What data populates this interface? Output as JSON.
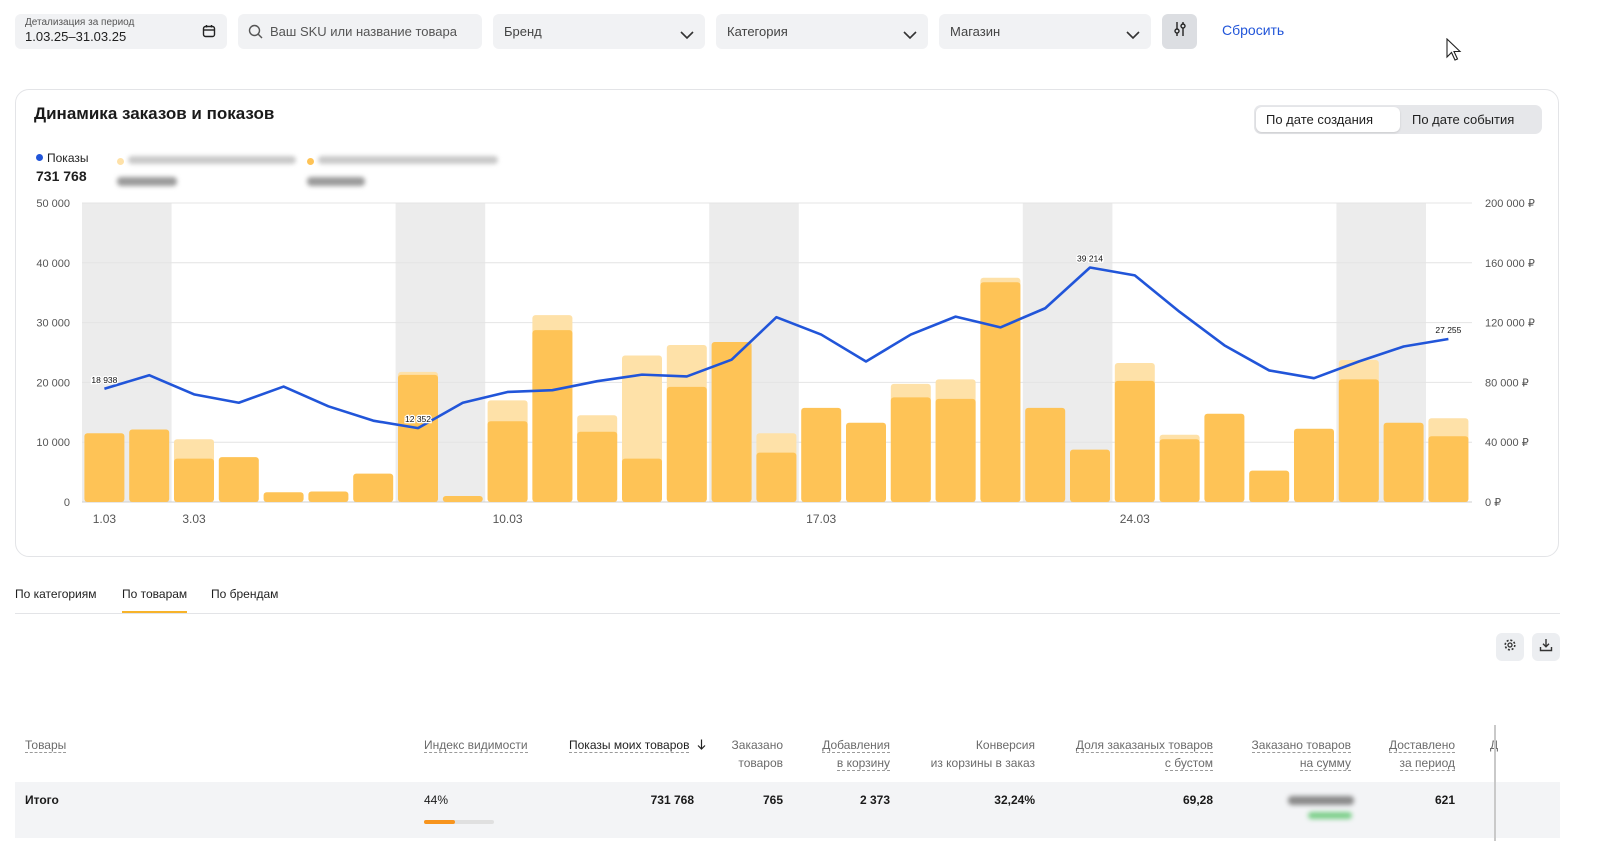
{
  "filters": {
    "period_label": "Детализация за период",
    "period_value": "1.03.25–31.03.25",
    "search_placeholder": "Ваш SKU или название товара",
    "brand": "Бренд",
    "category": "Категория",
    "shop": "Магазин",
    "reset": "Сбросить"
  },
  "card": {
    "title": "Динамика заказов и показов",
    "toggle": [
      "По дате создания",
      "По дате события"
    ],
    "active_toggle": 0
  },
  "legend": {
    "series_name": "Показы",
    "series_total": "731 768",
    "series_color": "#2155d9"
  },
  "chart_data": {
    "type": "bar",
    "categories": [
      "1.03",
      "2.03",
      "3.03",
      "4.03",
      "5.03",
      "6.03",
      "7.03",
      "8.03",
      "9.03",
      "10.03",
      "11.03",
      "12.03",
      "13.03",
      "14.03",
      "15.03",
      "16.03",
      "17.03",
      "18.03",
      "19.03",
      "20.03",
      "21.03",
      "22.03",
      "23.03",
      "24.03",
      "25.03",
      "26.03",
      "27.03",
      "28.03",
      "29.03",
      "30.03",
      "31.03"
    ],
    "x_tick_labels": [
      "1.03",
      "3.03",
      "10.03",
      "17.03",
      "24.03"
    ],
    "weekend_days": [
      "1.03",
      "2.03",
      "8.03",
      "9.03",
      "15.03",
      "16.03",
      "22.03",
      "23.03",
      "29.03",
      "30.03"
    ],
    "bars_dark": [
      46000,
      48500,
      29000,
      30000,
      6500,
      7000,
      19000,
      85000,
      4000,
      54000,
      115000,
      47000,
      29000,
      77000,
      107000,
      33000,
      63000,
      53000,
      70000,
      69000,
      147000,
      63000,
      35000,
      81000,
      42000,
      59000,
      21000,
      49000,
      82000,
      53000,
      44000
    ],
    "bars_light": [
      46000,
      48500,
      42000,
      30000,
      6500,
      7000,
      19000,
      87000,
      4000,
      68000,
      125000,
      58000,
      98000,
      105000,
      107000,
      46000,
      63000,
      53000,
      79000,
      82000,
      150000,
      63000,
      35000,
      93000,
      45000,
      59000,
      21000,
      49000,
      95000,
      53000,
      56000
    ],
    "line_values": [
      18938,
      21200,
      18000,
      16600,
      19300,
      16000,
      13600,
      12352,
      16600,
      18400,
      18700,
      20200,
      21300,
      21000,
      23800,
      30900,
      28000,
      23500,
      28000,
      31000,
      29200,
      32400,
      39214,
      37900,
      31800,
      26200,
      22000,
      20700,
      23500,
      26000,
      27255
    ],
    "line_labels": [
      {
        "category": "1.03",
        "text": "18 938"
      },
      {
        "category": "8.03",
        "text": "12 352"
      },
      {
        "category": "23.03",
        "text": "39 214"
      },
      {
        "category": "31.03",
        "text": "27 255"
      }
    ],
    "y_left": {
      "ticks": [
        "0",
        "10 000",
        "20 000",
        "30 000",
        "40 000",
        "50 000"
      ],
      "lim": [
        0,
        50000
      ]
    },
    "y_right": {
      "ticks": [
        "0 ₽",
        "40 000 ₽",
        "80 000 ₽",
        "120 000 ₽",
        "160 000 ₽",
        "200 000 ₽"
      ],
      "lim": [
        0,
        200000
      ]
    },
    "colors": {
      "bar_dark": "#fec356",
      "bar_light": "#fee1a8",
      "line": "#2155d9",
      "weekend": "#ececec",
      "grid": "#e4e4e4"
    }
  },
  "tabs": [
    "По категориям",
    "По товарам",
    "По брендам"
  ],
  "active_tab": 1,
  "icons": {
    "settings": "gear-icon",
    "download": "download-icon"
  },
  "table": {
    "headers": {
      "product": "Товары",
      "visibility": "Индекс видимости",
      "impressions": "Показы моих товаров",
      "ordered_1": "Заказано",
      "ordered_2": "товаров",
      "cart_1": "Добавления",
      "cart_2": "в корзину",
      "conv_1": "Конверсия",
      "conv_2": "из корзины в заказ",
      "boost_1": "Доля заказаных товаров",
      "boost_2": "с бустом",
      "sum_1": "Заказано товаров",
      "sum_2": "на сумму",
      "delivered_1": "Доставлено",
      "delivered_2": "за период",
      "cut": "Д"
    },
    "total": {
      "label": "Итого",
      "visibility": "44%",
      "visibility_fraction": 0.44,
      "impressions": "731 768",
      "ordered": "765",
      "cart": "2 373",
      "conversion": "32,24%",
      "boost": "69,28",
      "delivered": "621"
    }
  }
}
